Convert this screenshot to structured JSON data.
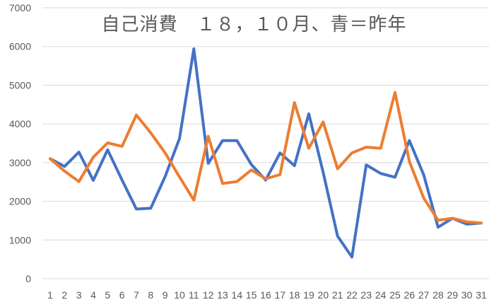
{
  "chart_data": {
    "type": "line",
    "title": "自己消費　１８，１０月、青＝昨年",
    "xlabel": "",
    "ylabel": "",
    "ylim": [
      0,
      7000
    ],
    "yticks": [
      0,
      1000,
      2000,
      3000,
      4000,
      5000,
      6000,
      7000
    ],
    "grid": "horizontal",
    "legend": "none",
    "categories": [
      "1",
      "2",
      "3",
      "4",
      "5",
      "6",
      "7",
      "8",
      "9",
      "10",
      "11",
      "12",
      "13",
      "14",
      "15",
      "16",
      "17",
      "18",
      "19",
      "20",
      "21",
      "22",
      "23",
      "24",
      "25",
      "26",
      "27",
      "28",
      "29",
      "30",
      "31"
    ],
    "series": [
      {
        "color": "#4472C4",
        "values": [
          3100,
          2900,
          3270,
          2540,
          3330,
          2550,
          1800,
          1820,
          2640,
          3620,
          5940,
          2980,
          3570,
          3570,
          2950,
          2550,
          3250,
          2920,
          4260,
          2750,
          1100,
          560,
          2940,
          2720,
          2620,
          3570,
          2680,
          1330,
          1560,
          1410,
          1440
        ]
      },
      {
        "color": "#ED7D31",
        "values": [
          3100,
          2780,
          2510,
          3140,
          3510,
          3420,
          4230,
          3770,
          3250,
          2630,
          2030,
          3680,
          2460,
          2510,
          2810,
          2580,
          2690,
          4550,
          3370,
          4050,
          2840,
          3250,
          3400,
          3370,
          4810,
          3030,
          2080,
          1510,
          1560,
          1470,
          1440
        ]
      }
    ]
  }
}
